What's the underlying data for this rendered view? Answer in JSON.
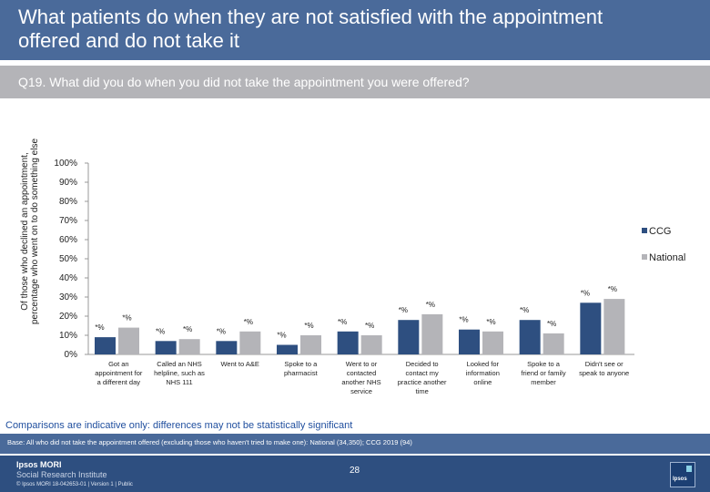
{
  "header": {
    "title": "What patients do when they are not satisfied with the appointment offered and do not take it",
    "question": "Q19. What did you do when you did not take the appointment you were offered?"
  },
  "chart_data": {
    "type": "bar",
    "ylabel": "Of those who declined an appointment, percentage who went on to do something else",
    "yticks": [
      "0%",
      "10%",
      "20%",
      "30%",
      "40%",
      "50%",
      "60%",
      "70%",
      "80%",
      "90%",
      "100%"
    ],
    "ylim": [
      0,
      100
    ],
    "categories": [
      [
        "Got an",
        "appointment for",
        "a different day"
      ],
      [
        "Called an NHS",
        "helpline, such as",
        "NHS 111"
      ],
      [
        "Went to A&E"
      ],
      [
        "Spoke to a",
        "pharmacist"
      ],
      [
        "Went to or",
        "contacted",
        "another NHS",
        "service"
      ],
      [
        "Decided to",
        "contact my",
        "practice another",
        "time"
      ],
      [
        "Looked for",
        "information",
        "online"
      ],
      [
        "Spoke to a",
        "friend or family",
        "member"
      ],
      [
        "Didn't see or",
        "speak to anyone"
      ]
    ],
    "series": [
      {
        "name": "CCG",
        "color": "#2e4f80",
        "values": [
          9,
          7,
          7,
          5,
          12,
          18,
          13,
          18,
          27
        ],
        "labels": [
          "*%",
          "*%",
          "*%",
          "*%",
          "*%",
          "*%",
          "*%",
          "*%",
          "*%"
        ]
      },
      {
        "name": "National",
        "color": "#b4b4b8",
        "values": [
          14,
          8,
          12,
          10,
          10,
          21,
          12,
          11,
          29
        ],
        "labels": [
          "*%",
          "*%",
          "*%",
          "*%",
          "*%",
          "*%",
          "*%",
          "*%",
          "*%"
        ]
      }
    ],
    "legend_position": "right"
  },
  "notes": {
    "disclaimer": "Comparisons are indicative only: differences may not be statistically significant",
    "base": "Base: All who did not take the appointment offered (excluding those who haven't tried to make one): National (34,350); CCG 2019 (94)"
  },
  "footer": {
    "brand_line1": "Ipsos MORI",
    "brand_line2": "Social Research Institute",
    "copyright": "© Ipsos MORI   18-042653-01 | Version 1 | Public",
    "page_number": "28",
    "logo_text": "Ipsos"
  },
  "colors": {
    "header_bg": "#4a6a9a",
    "footer_bg": "#2e4f80",
    "ccg": "#2e4f80",
    "national": "#b4b4b8",
    "disclaimer": "#1f4e9e"
  }
}
